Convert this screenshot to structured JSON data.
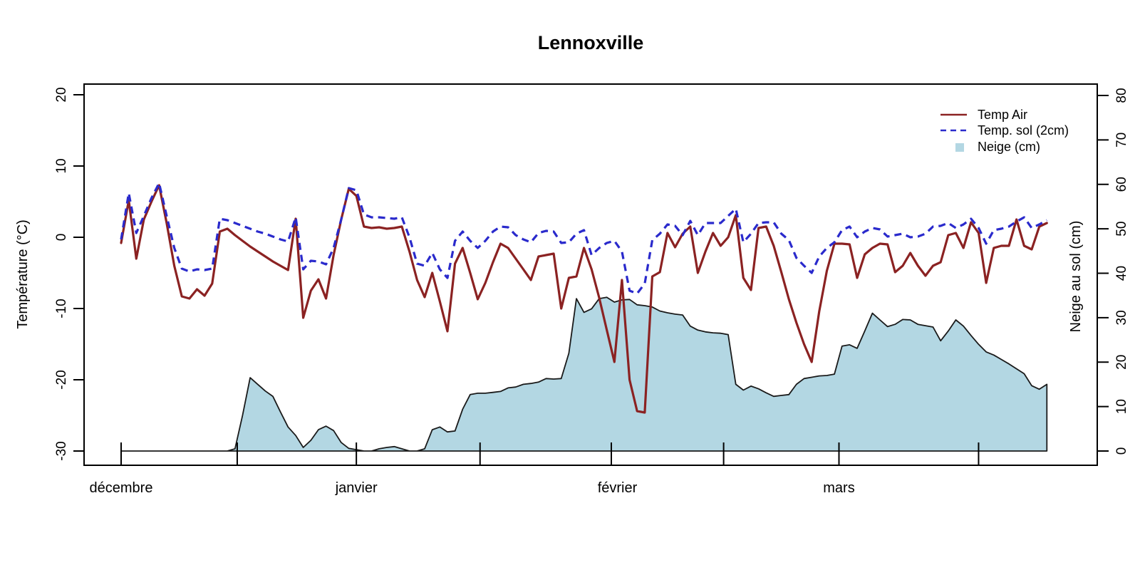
{
  "window": {
    "title": "Lennoxville"
  },
  "chart_data": {
    "type": "line",
    "title": "Lennoxville",
    "x_start": "1 décembre",
    "x_axis": {
      "tick_days": [
        0,
        15.3,
        31,
        47.3,
        64.6,
        79.4,
        94.6,
        113
      ],
      "month_labels": [
        {
          "label": "décembre",
          "day": 0
        },
        {
          "label": "janvier",
          "day": 31
        },
        {
          "label": "février",
          "day": 65.4
        },
        {
          "label": "mars",
          "day": 94.6
        }
      ]
    },
    "y_left": {
      "title": "Température (°C)",
      "ticks": [
        20,
        10,
        0,
        -10,
        -20,
        -30
      ],
      "range": [
        -32,
        22
      ]
    },
    "y_right": {
      "title": "Neige au sol (cm)",
      "ticks": [
        0,
        10,
        20,
        30,
        40,
        50,
        60,
        70,
        80
      ],
      "range": [
        -3,
        83
      ]
    },
    "grid": false,
    "legend_position": "top-right",
    "series": [
      {
        "name": "Temp Air",
        "type": "line",
        "style": "solid",
        "color": "#8B2222",
        "axis": "left",
        "values": [
          -0.8,
          5.2,
          -3.0,
          2.5,
          5.0,
          7.3,
          2.0,
          -4.0,
          -8.3,
          -8.6,
          -7.3,
          -8.2,
          -6.5,
          0.8,
          1.2,
          0.3,
          -0.5,
          -1.3,
          -2.0,
          -2.7,
          -3.4,
          -4.0,
          -4.6,
          2.6,
          -11.3,
          -7.5,
          -5.9,
          -8.6,
          -2.5,
          2.5,
          6.8,
          5.8,
          1.5,
          1.3,
          1.4,
          1.2,
          1.3,
          1.5,
          -2.0,
          -6.0,
          -8.4,
          -5.0,
          -9.0,
          -13.2,
          -3.7,
          -1.5,
          -5.0,
          -8.7,
          -6.4,
          -3.5,
          -0.9,
          -1.5,
          -3.0,
          -4.5,
          -6.0,
          -2.7,
          -2.5,
          -2.3,
          -10.0,
          -5.7,
          -5.5,
          -1.5,
          -4.5,
          -8.5,
          -13.0,
          -17.5,
          -6.0,
          -20.0,
          -24.4,
          -24.6,
          -5.5,
          -4.9,
          0.6,
          -1.4,
          0.5,
          1.5,
          -5.0,
          -2.0,
          0.6,
          -1.2,
          0.0,
          3.1,
          -5.7,
          -7.4,
          1.3,
          1.5,
          -1.2,
          -4.9,
          -8.7,
          -12.0,
          -15.0,
          -17.5,
          -10.4,
          -4.7,
          -0.9,
          -0.9,
          -1.0,
          -5.7,
          -2.4,
          -1.5,
          -0.9,
          -1.0,
          -4.9,
          -4.0,
          -2.2,
          -4.0,
          -5.4,
          -4.0,
          -3.5,
          0.3,
          0.6,
          -1.5,
          2.1,
          0.6,
          -6.4,
          -1.5,
          -1.2,
          -1.2,
          2.5,
          -1.2,
          -1.7,
          1.5,
          2.0
        ]
      },
      {
        "name": "Temp. sol (2cm)",
        "type": "line",
        "style": "dashed",
        "color": "#2A2ACC",
        "axis": "left",
        "values": [
          -0.3,
          6.2,
          0.6,
          3.0,
          5.5,
          7.6,
          3.0,
          -1.5,
          -4.4,
          -4.8,
          -4.5,
          -4.6,
          -4.4,
          2.6,
          2.4,
          2.0,
          1.6,
          1.2,
          0.8,
          0.5,
          0.1,
          -0.3,
          -0.6,
          2.8,
          -4.5,
          -3.3,
          -3.4,
          -3.8,
          -1.5,
          2.5,
          6.9,
          6.6,
          3.2,
          2.8,
          2.8,
          2.7,
          2.6,
          2.8,
          0.0,
          -3.7,
          -4.0,
          -2.2,
          -4.5,
          -5.7,
          -0.5,
          0.8,
          -0.5,
          -1.5,
          -0.5,
          0.8,
          1.5,
          1.4,
          0.3,
          -0.3,
          -0.7,
          0.6,
          0.9,
          0.8,
          -0.8,
          -0.7,
          0.5,
          1.0,
          -2.5,
          -1.5,
          -0.8,
          -0.5,
          -2.0,
          -7.5,
          -7.9,
          -6.5,
          -0.4,
          0.5,
          1.8,
          1.6,
          0.3,
          2.3,
          0.3,
          2.0,
          2.0,
          2.0,
          3.0,
          4.0,
          -0.7,
          0.5,
          2.0,
          2.1,
          2.1,
          0.5,
          -0.4,
          -2.9,
          -4.0,
          -5.0,
          -2.7,
          -1.5,
          -0.7,
          1.0,
          1.5,
          0.0,
          0.8,
          1.3,
          1.1,
          0.1,
          0.3,
          0.5,
          0.0,
          0.1,
          0.5,
          1.5,
          1.6,
          2.0,
          1.3,
          1.8,
          2.6,
          1.3,
          -0.9,
          1.0,
          1.2,
          1.5,
          2.2,
          2.8,
          1.3,
          1.8,
          2.4
        ]
      },
      {
        "name": "Neige (cm)",
        "type": "area",
        "style": "filled",
        "color": "#B3D7E3",
        "axis": "right",
        "values": [
          0,
          0,
          0,
          0,
          0,
          0,
          0,
          0,
          0,
          0,
          0,
          0,
          0,
          0,
          0,
          0.5,
          8.0,
          16.5,
          15.0,
          13.5,
          12.3,
          8.8,
          5.4,
          3.5,
          0.8,
          2.4,
          4.8,
          5.6,
          4.6,
          1.9,
          0.6,
          0.3,
          0.0,
          0.0,
          0.5,
          0.8,
          1.0,
          0.5,
          0.0,
          0.0,
          0.5,
          4.8,
          5.4,
          4.3,
          4.5,
          9.4,
          12.7,
          13.0,
          13.0,
          13.2,
          13.4,
          14.2,
          14.4,
          15.0,
          15.2,
          15.5,
          16.3,
          16.2,
          16.3,
          22.0,
          34.3,
          31.2,
          32.0,
          34.3,
          34.6,
          33.5,
          34.0,
          34.1,
          32.9,
          32.7,
          32.4,
          31.5,
          31.1,
          30.8,
          30.6,
          28.1,
          27.2,
          26.8,
          26.6,
          26.5,
          26.2,
          15.0,
          13.7,
          14.6,
          14.0,
          13.1,
          12.3,
          12.5,
          12.7,
          15.0,
          16.3,
          16.6,
          16.9,
          17.0,
          17.3,
          23.6,
          23.9,
          23.1,
          27.0,
          31.0,
          29.5,
          28.0,
          28.5,
          29.6,
          29.5,
          28.5,
          28.2,
          27.9,
          24.8,
          27.0,
          29.5,
          28.1,
          26.0,
          24.0,
          22.3,
          21.6,
          20.6,
          19.6,
          18.5,
          17.4,
          14.7,
          13.9,
          15.0
        ]
      }
    ]
  },
  "colors": {
    "temp_air": "#8B2222",
    "temp_sol": "#2A2ACC",
    "snow_fill": "#B3D7E3",
    "snow_border": "#1A1A1A",
    "axis": "#000000",
    "background": "#FFFFFF"
  }
}
